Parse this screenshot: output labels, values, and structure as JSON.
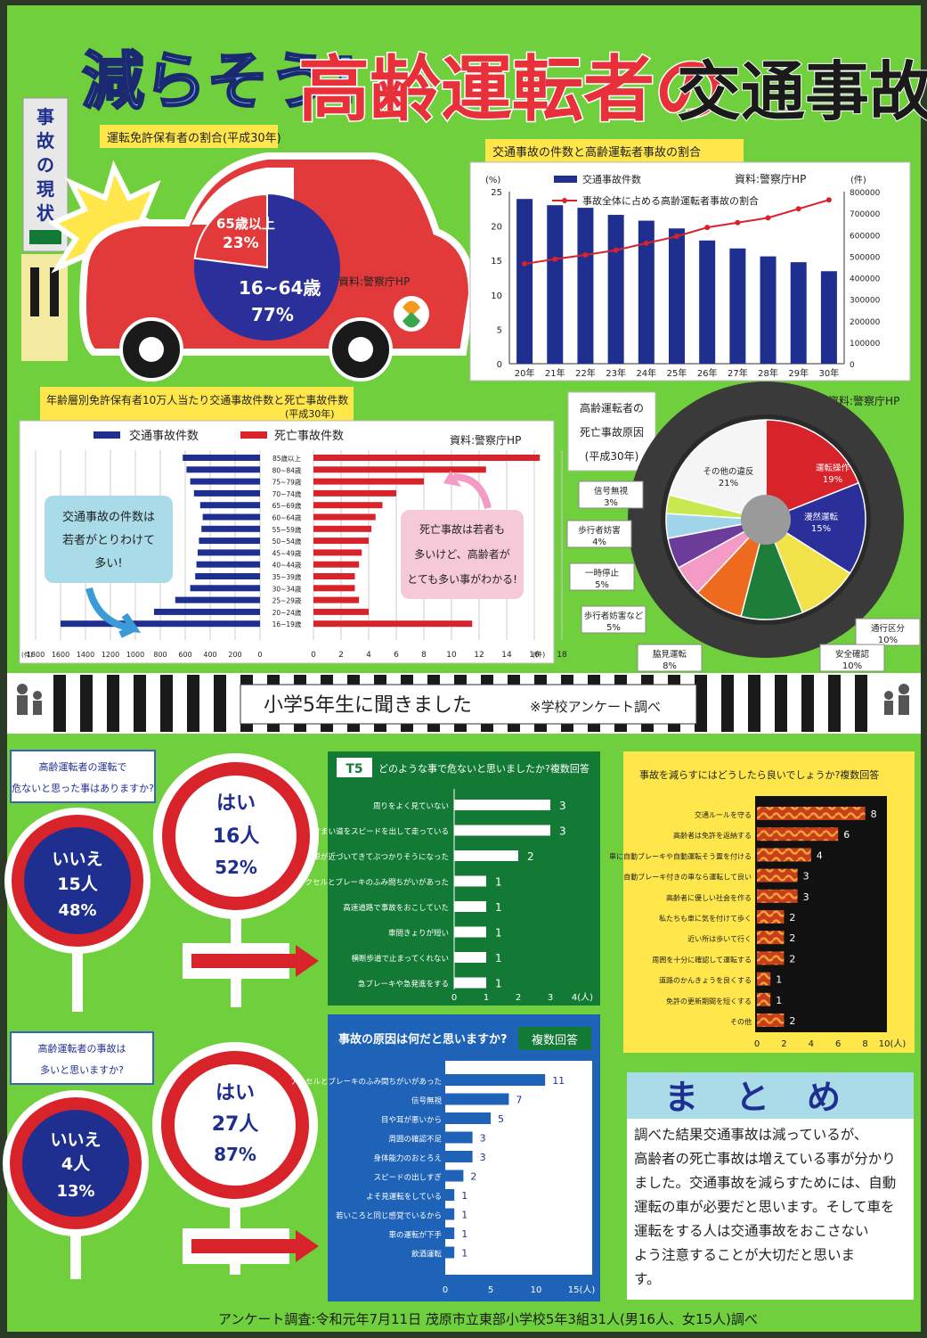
{
  "colors": {
    "board": "#6fcf3c",
    "navy": "#1f2f8f",
    "red": "#d8232a",
    "yellow": "#ffe64a",
    "dark_green": "#137a36",
    "blue_panel": "#1f63b8",
    "light_blue": "#a9dbe8",
    "pink": "#f6c9d8"
  },
  "header": {
    "title_part1": "減らそう!",
    "title_part2": "高齢運転者の",
    "title_part3": "交通事故"
  },
  "side_label": {
    "chars": [
      "事",
      "故",
      "の",
      "現",
      "状"
    ]
  },
  "license_section": {
    "title": "運転免許保有者の割合(平成30年)",
    "slice_elderly_label": "65歳以上",
    "slice_elderly_pct": "23%",
    "slice_young_label": "16~64歳",
    "slice_young_pct": "77%",
    "source": "資料:警察庁HP",
    "elderly_fraction": 0.23
  },
  "accident_trend": {
    "title": "交通事故の件数と高齢運転者事故の割合",
    "legend_bar": "交通事故件数",
    "legend_line": "事故全体に占める高齢運転者事故の割合",
    "source": "資料:警察庁HP",
    "left_unit": "(%)",
    "right_unit": "(件)",
    "left_ticks": [
      "25",
      "20",
      "15",
      "10",
      "5",
      "0"
    ],
    "right_ticks": [
      "800000",
      "700000",
      "600000",
      "500000",
      "400000",
      "300000",
      "200000",
      "100000",
      "0"
    ],
    "categories": [
      "20年",
      "21年",
      "22年",
      "23年",
      "24年",
      "25年",
      "26年",
      "27年",
      "28年",
      "29年",
      "30年"
    ],
    "bar_values": [
      766000,
      737000,
      725000,
      692000,
      665000,
      629000,
      573000,
      536000,
      499000,
      472000,
      430000
    ],
    "line_values": [
      14.5,
      15.2,
      15.8,
      16.5,
      17.5,
      18.5,
      19.8,
      20.5,
      21.2,
      22.5,
      23.8
    ]
  },
  "age_section": {
    "title": "年齢層別免許保有者10万人当たり交通事故件数と死亡事故件数",
    "year": "(平成30年)",
    "legend_left": "交通事故件数",
    "legend_right": "死亡事故件数",
    "source": "資料:警察庁HP",
    "age_labels": [
      "85歳以上",
      "80~84歳",
      "75~79歳",
      "70~74歳",
      "65~69歳",
      "60~64歳",
      "55~59歳",
      "50~54歳",
      "45~49歳",
      "40~44歳",
      "35~39歳",
      "30~34歳",
      "25~29歳",
      "20~24歳",
      "16~19歳"
    ],
    "accidents": [
      620,
      590,
      560,
      530,
      480,
      460,
      470,
      490,
      500,
      510,
      520,
      560,
      680,
      850,
      1600
    ],
    "fatal": [
      16.4,
      12.5,
      8.0,
      6.0,
      5.0,
      4.5,
      4.2,
      4.0,
      3.5,
      3.3,
      3.0,
      3.0,
      3.3,
      4.0,
      11.5
    ],
    "left_ticks": [
      "1800",
      "1600",
      "1400",
      "1200",
      "1000",
      "800",
      "600",
      "400",
      "200",
      "0"
    ],
    "right_ticks": [
      "0",
      "2",
      "4",
      "6",
      "8",
      "10",
      "12",
      "14",
      "16",
      "18"
    ],
    "left_unit": "(件)",
    "right_unit": "(件)",
    "note_left": [
      "交通事故の件数は",
      "若者がとりわけて",
      "多い!"
    ],
    "note_right": [
      "死亡事故は若者も",
      "多いけど、高齢者が",
      "とても多い事がわかる!"
    ]
  },
  "fatal_causes": {
    "title_lines": [
      "高齢運転者の",
      "死亡事故原因",
      "(平成30年)"
    ],
    "source": "資料:警察庁HP",
    "slices": [
      {
        "label": "運転操作",
        "pct": "19%",
        "value": 19,
        "color": "#d8232a"
      },
      {
        "label": "漫然運転",
        "pct": "15%",
        "value": 15,
        "color": "#2b2f9a"
      },
      {
        "label": "通行区分",
        "pct": "10%",
        "value": 10,
        "color": "#f2e24a"
      },
      {
        "label": "安全確認",
        "pct": "10%",
        "value": 10,
        "color": "#1f7d3a"
      },
      {
        "label": "脇見運転",
        "pct": "8%",
        "value": 8,
        "color": "#ee6a1e"
      },
      {
        "label": "歩行者妨害など",
        "pct": "5%",
        "value": 5,
        "color": "#f39ac5"
      },
      {
        "label": "一時停止",
        "pct": "5%",
        "value": 5,
        "color": "#6c3c9a"
      },
      {
        "label": "歩行者妨害",
        "pct": "4%",
        "value": 4,
        "color": "#9fd4ea"
      },
      {
        "label": "信号無視",
        "pct": "3%",
        "value": 3,
        "color": "#c7e84f"
      },
      {
        "label": "その他の違反",
        "pct": "21%",
        "value": 21,
        "color": "#f5f5f5"
      }
    ]
  },
  "survey_band": {
    "title": "小学5年生に聞きました",
    "note": "※学校アンケート調べ"
  },
  "q1": {
    "question_lines": [
      "高齢運転者の運転で",
      "危ないと思った事はありますか?"
    ],
    "yes_label": "はい",
    "yes_count": "16人",
    "yes_pct": "52%",
    "no_label": "いいえ",
    "no_count": "15人",
    "no_pct": "48%"
  },
  "q2": {
    "question_lines": [
      "高齢運転者の事故は",
      "多いと思いますか?"
    ],
    "yes_label": "はい",
    "yes_count": "27人",
    "yes_pct": "87%",
    "no_label": "いいえ",
    "no_count": "4人",
    "no_pct": "13%"
  },
  "q_danger": {
    "badge": "T5",
    "title": "どのような事で危ないと思いましたか?複数回答",
    "items": [
      {
        "label": "周りをよく見ていない",
        "value": 3
      },
      {
        "label": "せまい道をスピードを出して走っている",
        "value": 3
      },
      {
        "label": "車が近づいてきてぶつかりそうになった",
        "value": 2
      },
      {
        "label": "アクセルとブレーキのふみ間ちがいがあった",
        "value": 1
      },
      {
        "label": "高速道路で事故をおこしていた",
        "value": 1
      },
      {
        "label": "車間きょりが短い",
        "value": 1
      },
      {
        "label": "横断歩道で止まってくれない",
        "value": 1
      },
      {
        "label": "急ブレーキや急発進をする",
        "value": 1
      }
    ],
    "ticks": [
      "0",
      "1",
      "2",
      "3",
      "4(人)"
    ]
  },
  "q_cause": {
    "title": "事故の原因は何だと思いますか?",
    "badge": "複数回答",
    "items": [
      {
        "label": "アクセルとブレーキのふみ間ちがいがあった",
        "value": 11
      },
      {
        "label": "信号無視",
        "value": 7
      },
      {
        "label": "目や耳が悪いから",
        "value": 5
      },
      {
        "label": "周囲の確認不足",
        "value": 3
      },
      {
        "label": "身体能力のおとろえ",
        "value": 3
      },
      {
        "label": "スピードの出しすぎ",
        "value": 2
      },
      {
        "label": "よそ見運転をしている",
        "value": 1
      },
      {
        "label": "若いころと同じ感覚でいるから",
        "value": 1
      },
      {
        "label": "車の運転が下手",
        "value": 1
      },
      {
        "label": "飲酒運転",
        "value": 1
      }
    ],
    "ticks": [
      "0",
      "5",
      "10",
      "15(人)"
    ]
  },
  "q_reduce": {
    "title": "事故を減らすにはどうしたら良いでしょうか?複数回答",
    "items": [
      {
        "label": "交通ルールを守る",
        "value": 8
      },
      {
        "label": "高齢者は免許を返納する",
        "value": 6
      },
      {
        "label": "車に自動ブレーキや自動運転そう置を付ける",
        "value": 4
      },
      {
        "label": "自動ブレーキ付きの車なら運転して良い",
        "value": 3
      },
      {
        "label": "高齢者に優しい社会を作る",
        "value": 3
      },
      {
        "label": "私たちも車に気を付けて歩く",
        "value": 2
      },
      {
        "label": "近い所は歩いて行く",
        "value": 2
      },
      {
        "label": "周囲を十分に確認して運転する",
        "value": 2
      },
      {
        "label": "道路のかんきょうを良くする",
        "value": 1
      },
      {
        "label": "免許の更新期間を短くする",
        "value": 1
      },
      {
        "label": "その他",
        "value": 2
      }
    ],
    "ticks": [
      "0",
      "2",
      "4",
      "6",
      "8",
      "10(人)"
    ]
  },
  "summary": {
    "title_chars": [
      "ま",
      "と",
      "め"
    ],
    "lines": [
      "調べた結果交通事故は減っているが、",
      "高齢者の死亡事故は増えている事が分かり",
      "ました。交通事故を減らすためには、自動",
      "運転の車が必要だと思います。そして車を",
      "運転をする人は交通事故をおこさない",
      "よう注意することが大切だと思いま",
      "す。"
    ]
  },
  "footer": {
    "text": "アンケート調査:令和元年7月11日 茂原市立東部小学校5年3組31人(男16人、女15人)調べ"
  }
}
